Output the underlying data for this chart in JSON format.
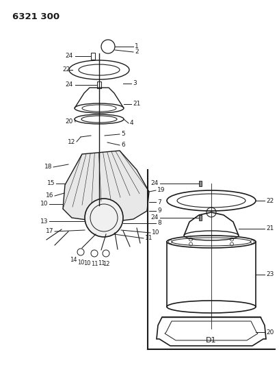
{
  "title": "6321 300",
  "bg_color": "#ffffff",
  "line_color": "#1a1a1a",
  "fig_width": 4.08,
  "fig_height": 5.33,
  "dpi": 100,
  "diagram_label": "D1"
}
